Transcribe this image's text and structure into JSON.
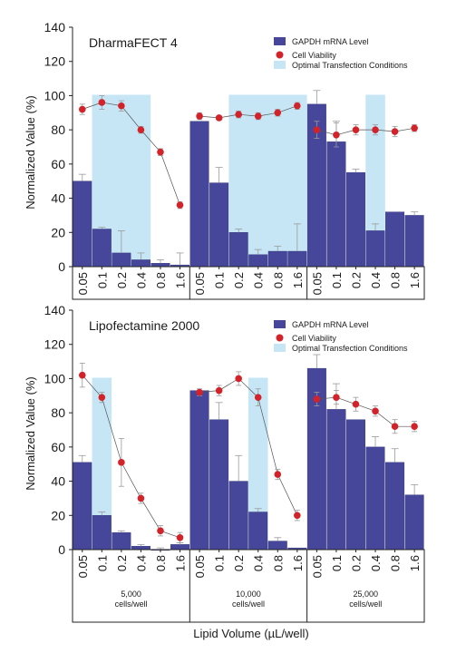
{
  "figure": {
    "xlabel": "Lipid Volume (µL/well)",
    "ylabel": "Normalized Value (%)"
  },
  "colors": {
    "bar": "#46479b",
    "bar_edge": "#2f3070",
    "viability": "#d2232a",
    "optimal": "#c6e6f6",
    "error": "#9a9a9a",
    "line": "#555555"
  },
  "chart_data": [
    {
      "type": "bar",
      "panel_label": "DharmaFECT 4",
      "ylim": [
        0,
        140
      ],
      "yticks": [
        0,
        20,
        40,
        60,
        80,
        100,
        120,
        140
      ],
      "grid": false,
      "legend_placement": "top-right",
      "legend": [
        "GAPDH mRNA Level",
        "Cell Viability",
        "Optimal Transfection Conditions"
      ],
      "groups": [
        {
          "label": "",
          "categories": [
            "0.05",
            "0.1",
            "0.2",
            "0.4",
            "0.8",
            "1.6"
          ]
        },
        {
          "label": "",
          "categories": [
            "0.05",
            "0.1",
            "0.2",
            "0.4",
            "0.8",
            "1.6"
          ]
        },
        {
          "label": "",
          "categories": [
            "0.05",
            "0.1",
            "0.2",
            "0.4",
            "0.8",
            "1.6"
          ]
        }
      ],
      "series": [
        {
          "name": "GAPDH mRNA Level",
          "kind": "bar",
          "values": [
            [
              50,
              22,
              8,
              4,
              2,
              1
            ],
            [
              85,
              49,
              20,
              7,
              9,
              9
            ],
            [
              95,
              73,
              55,
              21,
              32,
              30
            ]
          ],
          "errors": [
            [
              4,
              1,
              13,
              4,
              2,
              7
            ],
            [
              0,
              9,
              2,
              3,
              3,
              16
            ],
            [
              8,
              12,
              2,
              4,
              0,
              2
            ]
          ]
        },
        {
          "name": "Cell Viability",
          "kind": "point",
          "values": [
            [
              92,
              96,
              94,
              80,
              67,
              36
            ],
            [
              88,
              87,
              89,
              88,
              90,
              94
            ],
            [
              80,
              77,
              80,
              80,
              79,
              81
            ]
          ],
          "errors": [
            [
              3,
              4,
              3,
              2,
              2,
              2
            ],
            [
              2,
              1,
              2,
              2,
              2,
              2
            ],
            [
              5,
              7,
              3,
              3,
              3,
              2
            ]
          ]
        }
      ],
      "optimal_ranges": [
        [
          0,
          1,
          3
        ],
        [
          1,
          2,
          5
        ],
        [
          2,
          3,
          3
        ]
      ]
    },
    {
      "type": "bar",
      "panel_label": "Lipofectamine 2000",
      "ylim": [
        0,
        140
      ],
      "yticks": [
        0,
        20,
        40,
        60,
        80,
        100,
        120,
        140
      ],
      "grid": false,
      "legend_placement": "top-right",
      "legend": [
        "GAPDH mRNA Level",
        "Cell Viability",
        "Optimal Transfection Conditions"
      ],
      "groups": [
        {
          "label": "5,000\ncells/well",
          "categories": [
            "0.05",
            "0.1",
            "0.2",
            "0.4",
            "0.8",
            "1.6"
          ]
        },
        {
          "label": "10,000\ncells/well",
          "categories": [
            "0.05",
            "0.1",
            "0.2",
            "0.4",
            "0.8",
            "1.6"
          ]
        },
        {
          "label": "25,000\ncells/well",
          "categories": [
            "0.05",
            "0.1",
            "0.2",
            "0.4",
            "0.8",
            "1.6"
          ]
        }
      ],
      "series": [
        {
          "name": "GAPDH mRNA Level",
          "kind": "bar",
          "values": [
            [
              51,
              20,
              10,
              2,
              0,
              3
            ],
            [
              93,
              76,
              40,
              22,
              5,
              1
            ],
            [
              106,
              82,
              76,
              60,
              51,
              32
            ]
          ],
          "errors": [
            [
              4,
              2,
              1,
              1,
              1,
              1
            ],
            [
              0,
              10,
              15,
              2,
              2,
              0
            ],
            [
              8,
              15,
              0,
              6,
              8,
              6
            ]
          ]
        },
        {
          "name": "Cell Viability",
          "kind": "point",
          "values": [
            [
              102,
              89,
              51,
              30,
              11,
              7
            ],
            [
              92,
              93,
              100,
              89,
              44,
              20
            ],
            [
              88,
              89,
              85,
              81,
              72,
              72
            ]
          ],
          "errors": [
            [
              7,
              3,
              14,
              3,
              3,
              3
            ],
            [
              2,
              3,
              4,
              5,
              3,
              3
            ],
            [
              4,
              4,
              4,
              3,
              4,
              3
            ]
          ]
        }
      ],
      "optimal_ranges": [
        [
          0,
          1,
          1
        ],
        [
          1,
          3,
          3
        ]
      ]
    }
  ]
}
